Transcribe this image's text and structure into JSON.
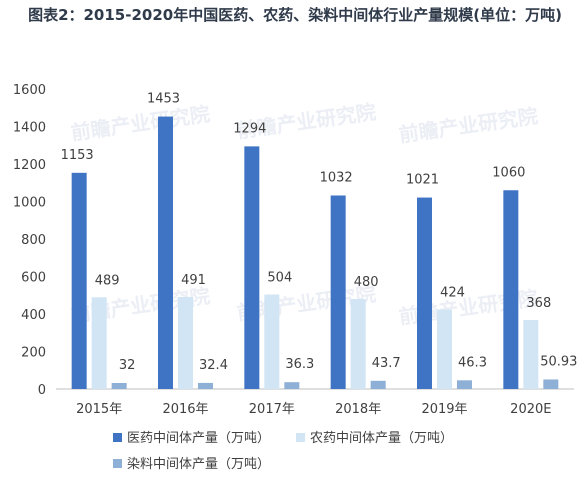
{
  "chart_data": {
    "type": "bar",
    "title": "图表2：2015-2020年中国医药、农药、染料中间体行业产量规模(单位：万吨)",
    "categories": [
      "2015年",
      "2016年",
      "2017年",
      "2018年",
      "2019年",
      "2020E"
    ],
    "ylim": [
      0,
      1600
    ],
    "yticks": [
      0,
      200,
      400,
      600,
      800,
      1000,
      1200,
      1400,
      1600
    ],
    "grid": false,
    "legend_position": "bottom",
    "series": [
      {
        "name": "医药中间体产量（万吨）",
        "values": [
          1153,
          1453,
          1294,
          1032,
          1021,
          1060
        ],
        "labels": [
          "1153",
          "1453",
          "1294",
          "1032",
          "1021",
          "1060"
        ],
        "color": "#3f73c4"
      },
      {
        "name": "农药中间体产量（万吨）",
        "values": [
          489,
          491,
          504,
          480,
          424,
          368
        ],
        "labels": [
          "489",
          "491",
          "504",
          "480",
          "424",
          "368"
        ],
        "color": "#d2e5f5"
      },
      {
        "name": "染料中间体产量（万吨）",
        "values": [
          32,
          32.4,
          36.3,
          43.7,
          46.3,
          50.93
        ],
        "labels": [
          "32",
          "32.4",
          "36.3",
          "43.7",
          "46.3",
          "50.93"
        ],
        "color": "#8fb0d6"
      }
    ],
    "watermark": "前瞻产业研究院"
  }
}
